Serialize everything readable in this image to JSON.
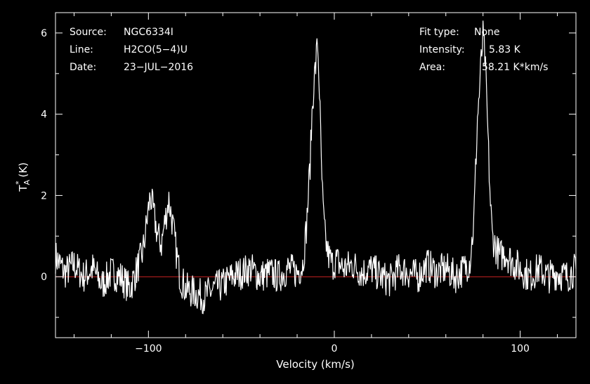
{
  "chart_data": {
    "type": "line",
    "xlabel": "Velocity (km/s)",
    "ylabel": "T",
    "ylabel_sub": "A",
    "ylabel_sup": "*",
    "ylabel_unit": " (K)",
    "xlim": [
      -150,
      130
    ],
    "ylim": [
      -1.5,
      6.5
    ],
    "xticks": [
      -100,
      0,
      100
    ],
    "xtick_labels": [
      "−100",
      "0",
      "100"
    ],
    "yticks": [
      0,
      2,
      4,
      6
    ],
    "ytick_labels": [
      "0",
      "2",
      "4",
      "6"
    ],
    "grid": false,
    "baseline": 0,
    "colors": {
      "background": "#000000",
      "line": "#ffffff",
      "baseline": "#cc2222",
      "axes": "#ffffff"
    },
    "series": [
      {
        "x": [
          -150,
          -145,
          -140,
          -135,
          -130,
          -125,
          -120,
          -115,
          -110,
          -106,
          -103,
          -101,
          -99,
          -97,
          -95,
          -93,
          -91,
          -89,
          -87,
          -85,
          -83,
          -80,
          -75,
          -70,
          -65,
          -60,
          -55,
          -50,
          -45,
          -40,
          -35,
          -30,
          -25,
          -20,
          -17,
          -15,
          -13,
          -12,
          -11,
          -10,
          -9,
          -8,
          -7,
          -6,
          -5,
          -4,
          -3,
          -1,
          1,
          5,
          10,
          15,
          20,
          25,
          30,
          35,
          40,
          45,
          50,
          55,
          60,
          65,
          70,
          73,
          75,
          76,
          77,
          78,
          79,
          80,
          81,
          82,
          83,
          84,
          85,
          87,
          89,
          92,
          95,
          100,
          105,
          110,
          115,
          120,
          125,
          130
        ],
        "y": [
          0.5,
          0.1,
          0.3,
          0.0,
          0.2,
          -0.2,
          0.1,
          0.0,
          -0.3,
          0.2,
          0.6,
          1.3,
          2.0,
          1.5,
          1.0,
          0.8,
          1.4,
          1.9,
          1.3,
          0.6,
          0.0,
          -0.3,
          -0.4,
          -0.5,
          -0.3,
          -0.2,
          0.0,
          0.1,
          0.2,
          0.0,
          0.1,
          0.0,
          0.2,
          0.1,
          0.3,
          1.2,
          2.8,
          4.0,
          4.8,
          5.2,
          5.8,
          4.6,
          2.8,
          1.6,
          1.0,
          0.7,
          0.5,
          0.3,
          0.4,
          0.2,
          0.3,
          0.1,
          0.2,
          0.0,
          -0.1,
          0.2,
          0.1,
          0.0,
          0.3,
          0.1,
          0.2,
          0.0,
          0.2,
          0.4,
          1.3,
          2.6,
          3.9,
          4.5,
          5.3,
          5.9,
          5.4,
          4.3,
          3.0,
          1.8,
          1.0,
          0.7,
          0.5,
          0.6,
          0.4,
          0.2,
          0.0,
          0.2,
          0.0,
          0.1,
          0.0,
          0.2
        ]
      }
    ]
  },
  "info": {
    "left": [
      {
        "key": "Source:",
        "value": "NGC6334I"
      },
      {
        "key": "Line:",
        "value": "H2CO(5−4)U"
      },
      {
        "key": "Date:",
        "value": "23−JUL−2016"
      }
    ],
    "right": [
      {
        "key": "Fit type:",
        "value": "None"
      },
      {
        "key": "Intensity:",
        "value": "5.83 K"
      },
      {
        "key": "Area:",
        "value": "58.21 K*km/s"
      }
    ]
  }
}
